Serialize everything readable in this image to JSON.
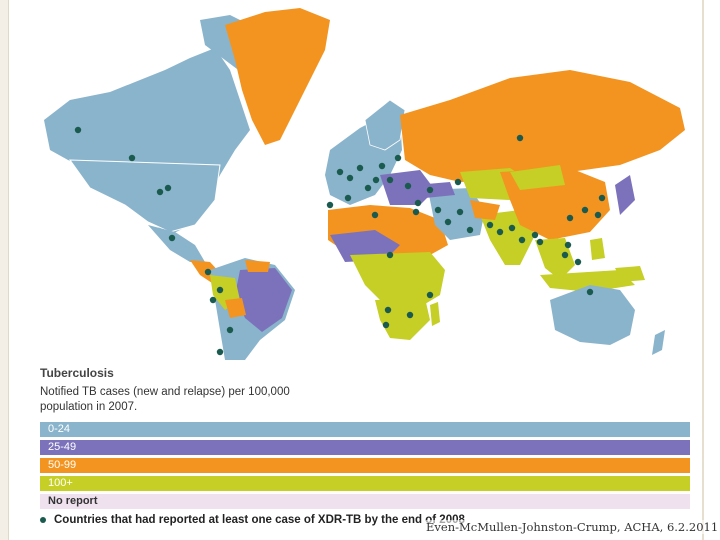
{
  "legend": {
    "title": "Tuberculosis",
    "subtitle": "Notified TB cases (new and relapse) per 100,000 population in 2007.",
    "bands": [
      {
        "label": "0-24",
        "color": "#8ab4cc"
      },
      {
        "label": "25-49",
        "color": "#7c72bb"
      },
      {
        "label": "50-99",
        "color": "#f39420"
      },
      {
        "label": "100+",
        "color": "#c5cf25"
      },
      {
        "label": "No report",
        "color": "#efe2ee"
      }
    ]
  },
  "xdr_note": "Countries that had reported at least one case of XDR-TB by the end of 2008",
  "credit": "Even-McMullen-Johnston-Crump, ACHA, 6.2.2011",
  "colors": {
    "dot": "#1b5a4e"
  }
}
